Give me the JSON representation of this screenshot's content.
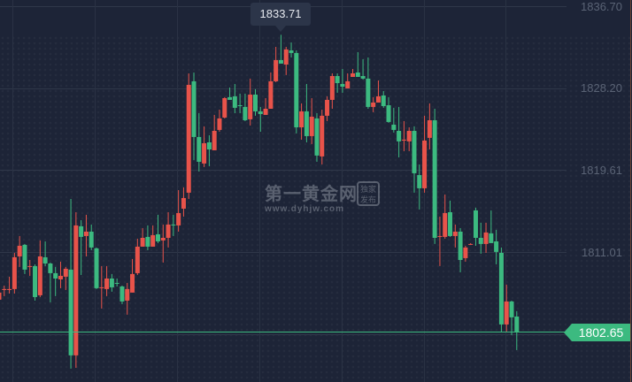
{
  "chart_data": {
    "type": "candlestick",
    "title": "",
    "xlabel": "",
    "ylabel": "",
    "ylim": [
      1798.0,
      1837.35
    ],
    "y_ticks": [
      "1836.70",
      "1828.20",
      "1819.61",
      "1811.01"
    ],
    "grid": true,
    "up_color": "#e8534a",
    "down_color": "#3cba80",
    "tooltip_value": "1833.71",
    "current_price": "1802.65",
    "current_price_color": "#3cba80",
    "candles": [
      [
        1806.03,
        1806.95,
        1805.84,
        1806.77
      ],
      [
        1807.04,
        1807.5,
        1806.4,
        1807.14
      ],
      [
        1807.04,
        1808.43,
        1806.67,
        1807.14
      ],
      [
        1807.14,
        1810.92,
        1806.67,
        1810.46
      ],
      [
        1810.55,
        1812.68,
        1809.45,
        1811.66
      ],
      [
        1811.76,
        1811.85,
        1808.71,
        1809.17
      ],
      [
        1809.45,
        1810.18,
        1808.52,
        1809.54
      ],
      [
        1809.54,
        1809.72,
        1805.93,
        1806.3
      ],
      [
        1806.49,
        1812.22,
        1806.3,
        1810.55
      ],
      [
        1810.46,
        1812.12,
        1809.54,
        1809.81
      ],
      [
        1809.81,
        1809.91,
        1805.75,
        1808.8
      ],
      [
        1808.8,
        1809.45,
        1806.4,
        1808.24
      ],
      [
        1808.15,
        1810.0,
        1807.23,
        1808.52
      ],
      [
        1808.43,
        1809.45,
        1807.04,
        1809.26
      ],
      [
        1809.17,
        1816.56,
        1798.82,
        1800.21
      ],
      [
        1800.21,
        1815.17,
        1798.91,
        1813.79
      ],
      [
        1813.7,
        1814.34,
        1808.61,
        1812.59
      ],
      [
        1812.68,
        1814.9,
        1810.55,
        1813.14
      ],
      [
        1813.14,
        1813.88,
        1811.2,
        1811.48
      ],
      [
        1811.39,
        1811.48,
        1807.14,
        1807.23
      ],
      [
        1807.23,
        1809.54,
        1805.1,
        1807.32
      ],
      [
        1807.14,
        1809.54,
        1806.4,
        1808.24
      ],
      [
        1808.24,
        1808.71,
        1806.86,
        1807.32
      ],
      [
        1807.78,
        1808.24,
        1807.41,
        1807.69
      ],
      [
        1807.41,
        1807.5,
        1805.56,
        1805.84
      ],
      [
        1805.93,
        1807.78,
        1804.46,
        1807.14
      ],
      [
        1806.77,
        1810.28,
        1806.77,
        1808.71
      ],
      [
        1808.8,
        1812.4,
        1808.61,
        1811.57
      ],
      [
        1811.57,
        1813.51,
        1811.57,
        1812.49
      ],
      [
        1812.59,
        1813.79,
        1811.2,
        1811.57
      ],
      [
        1811.57,
        1813.79,
        1811.57,
        1812.77
      ],
      [
        1812.86,
        1814.9,
        1811.94,
        1812.12
      ],
      [
        1812.22,
        1813.88,
        1809.91,
        1812.49
      ],
      [
        1812.49,
        1815.17,
        1811.48,
        1813.88
      ],
      [
        1813.88,
        1814.9,
        1812.68,
        1813.79
      ],
      [
        1813.79,
        1817.48,
        1813.14,
        1815.08
      ],
      [
        1815.54,
        1817.76,
        1814.71,
        1816.65
      ],
      [
        1817.21,
        1829.68,
        1816.56,
        1828.48
      ],
      [
        1828.85,
        1829.77,
        1820.63,
        1823.03
      ],
      [
        1823.03,
        1825.52,
        1819.42,
        1820.44
      ],
      [
        1820.26,
        1824.14,
        1819.89,
        1822.38
      ],
      [
        1822.47,
        1823.21,
        1819.98,
        1821.73
      ],
      [
        1821.64,
        1825.34,
        1821.64,
        1823.67
      ],
      [
        1823.77,
        1825.89,
        1823.58,
        1824.97
      ],
      [
        1825.06,
        1827.19,
        1824.97,
        1827.09
      ],
      [
        1827.19,
        1828.2,
        1826.91,
        1826.91
      ],
      [
        1827.28,
        1828.57,
        1825.52,
        1826.08
      ],
      [
        1826.35,
        1827.56,
        1825.52,
        1826.26
      ],
      [
        1826.17,
        1827.56,
        1824.69,
        1824.78
      ],
      [
        1824.88,
        1829.13,
        1824.23,
        1827.46
      ],
      [
        1827.46,
        1828.02,
        1825.25,
        1825.71
      ],
      [
        1825.71,
        1826.17,
        1823.58,
        1825.43
      ],
      [
        1825.34,
        1827.09,
        1825.34,
        1825.98
      ],
      [
        1825.98,
        1829.77,
        1825.98,
        1828.85
      ],
      [
        1828.85,
        1832.45,
        1828.76,
        1831.07
      ],
      [
        1831.07,
        1833.71,
        1830.7,
        1830.7
      ],
      [
        1830.6,
        1832.45,
        1829.5,
        1832.18
      ],
      [
        1832.08,
        1832.91,
        1831.34,
        1831.81
      ],
      [
        1831.81,
        1832.08,
        1823.4,
        1824.04
      ],
      [
        1824.04,
        1826.54,
        1822.75,
        1825.71
      ],
      [
        1825.71,
        1828.57,
        1822.47,
        1823.12
      ],
      [
        1823.12,
        1827.09,
        1822.29,
        1825.15
      ],
      [
        1824.97,
        1825.52,
        1820.44,
        1821.09
      ],
      [
        1821.0,
        1825.89,
        1820.16,
        1825.25
      ],
      [
        1825.25,
        1827.28,
        1824.69,
        1826.91
      ],
      [
        1826.91,
        1829.68,
        1825.98,
        1829.4
      ],
      [
        1829.4,
        1829.68,
        1827.65,
        1828.66
      ],
      [
        1828.57,
        1830.14,
        1827.65,
        1828.29
      ],
      [
        1828.11,
        1829.68,
        1828.11,
        1828.85
      ],
      [
        1829.31,
        1830.14,
        1829.31,
        1829.68
      ],
      [
        1829.77,
        1831.9,
        1829.31,
        1829.31
      ],
      [
        1829.4,
        1831.16,
        1829.03,
        1829.13
      ],
      [
        1829.13,
        1831.34,
        1825.98,
        1826.17
      ],
      [
        1826.17,
        1827.19,
        1825.62,
        1826.63
      ],
      [
        1826.63,
        1828.94,
        1826.63,
        1827.28
      ],
      [
        1827.37,
        1827.83,
        1826.08,
        1826.26
      ],
      [
        1826.35,
        1827.19,
        1824.51,
        1824.6
      ],
      [
        1824.32,
        1826.08,
        1823.49,
        1823.77
      ],
      [
        1823.67,
        1826.17,
        1820.9,
        1822.57
      ],
      [
        1822.66,
        1824.69,
        1821.55,
        1822.75
      ],
      [
        1822.57,
        1824.04,
        1821.55,
        1823.67
      ],
      [
        1823.67,
        1824.14,
        1817.21,
        1819.24
      ],
      [
        1819.05,
        1820.16,
        1815.45,
        1817.67
      ],
      [
        1817.67,
        1825.25,
        1817.21,
        1822.66
      ],
      [
        1822.94,
        1826.54,
        1821.73,
        1824.78
      ],
      [
        1824.78,
        1825.98,
        1811.85,
        1812.49
      ],
      [
        1812.59,
        1814.71,
        1809.54,
        1812.68
      ],
      [
        1812.59,
        1817.02,
        1812.4,
        1815.08
      ],
      [
        1815.17,
        1816.38,
        1812.59,
        1812.68
      ],
      [
        1812.68,
        1813.88,
        1811.48,
        1813.14
      ],
      [
        1813.14,
        1813.51,
        1808.89,
        1810.18
      ],
      [
        1810.37,
        1811.66,
        1810.0,
        1811.48
      ],
      [
        1811.76,
        1811.94,
        1811.76,
        1811.85
      ],
      [
        1815.36,
        1815.64,
        1811.66,
        1812.49
      ],
      [
        1812.49,
        1814.07,
        1810.83,
        1811.85
      ],
      [
        1811.85,
        1814.07,
        1810.92,
        1813.05
      ],
      [
        1812.96,
        1815.36,
        1811.94,
        1811.94
      ],
      [
        1812.12,
        1813.33,
        1809.72,
        1811.02
      ],
      [
        1810.92,
        1811.48,
        1802.61,
        1803.44
      ],
      [
        1803.44,
        1807.6,
        1802.7,
        1805.84
      ],
      [
        1805.84,
        1805.93,
        1802.33,
        1804.18
      ],
      [
        1804.27,
        1804.83,
        1800.76,
        1802.65
      ]
    ]
  },
  "watermark": {
    "title": "第一黄金网",
    "url": "www.dyhjw.com",
    "badge_line1": "独家",
    "badge_line2": "发布"
  }
}
